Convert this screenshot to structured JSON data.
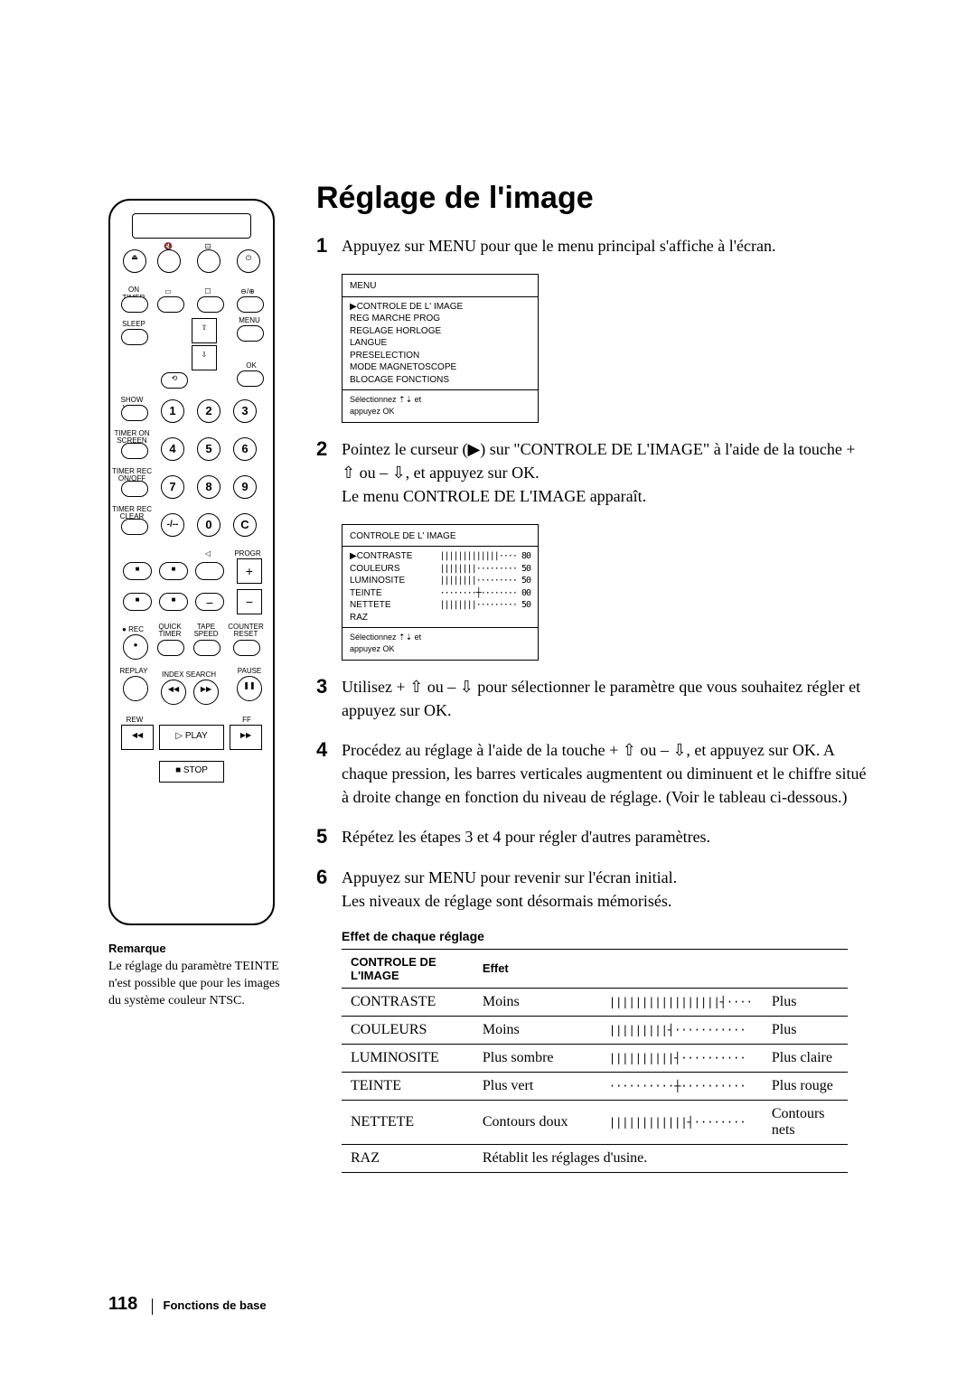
{
  "title": "Réglage de l'image",
  "steps": [
    {
      "n": "1",
      "text": "Appuyez sur MENU pour que le menu principal s'affiche à l'écran."
    },
    {
      "n": "2",
      "text": "Pointez le curseur (▶) sur \"CONTROLE DE L'IMAGE\" à l'aide de la touche + ⇧ ou – ⇩, et appuyez sur OK.\nLe menu CONTROLE DE L'IMAGE apparaît."
    },
    {
      "n": "3",
      "text": "Utilisez + ⇧ ou – ⇩ pour sélectionner le paramètre que vous souhaitez régler et appuyez sur OK."
    },
    {
      "n": "4",
      "text": "Procédez au réglage à l'aide de la touche + ⇧ ou – ⇩, et appuyez sur OK. A chaque pression, les barres verticales augmentent ou diminuent et le chiffre situé à droite change en fonction du niveau de réglage. (Voir le tableau ci-dessous.)"
    },
    {
      "n": "5",
      "text": "Répétez les étapes 3 et 4 pour régler d'autres paramètres."
    },
    {
      "n": "6",
      "text": "Appuyez sur MENU pour revenir sur l'écran initial.\nLes niveaux de réglage sont désormais mémorisés."
    }
  ],
  "osd1": {
    "header": "MENU",
    "items": [
      "▶CONTROLE DE L' IMAGE",
      "  REG MARCHE PROG",
      "  REGLAGE HORLOGE",
      "  LANGUE",
      "  PRESELECTION",
      "  MODE MAGNETOSCOPE",
      "  BLOCAGE FONCTIONS"
    ],
    "footer": "Sélectionnez ⇡⇣  et\nappuyez OK"
  },
  "osd2": {
    "header": "CONTROLE DE L' IMAGE",
    "rows": [
      {
        "label": "▶CONTRASTE",
        "bar": "|||||||||||||····",
        "val": "80"
      },
      {
        "label": "  COULEURS",
        "bar": "||||||||·········",
        "val": "50"
      },
      {
        "label": "  LUMINOSITE",
        "bar": "||||||||·········",
        "val": "50"
      },
      {
        "label": "  TEINTE",
        "bar": "········┼········",
        "val": "00"
      },
      {
        "label": "  NETTETE",
        "bar": "||||||||·········",
        "val": "50"
      },
      {
        "label": "  RAZ",
        "bar": "",
        "val": ""
      }
    ],
    "footer": "Sélectionnez ⇡⇣  et\nappuyez OK"
  },
  "note": {
    "heading": "Remarque",
    "text": "Le réglage du paramètre TEINTE n'est possible que pour les images du système couleur NTSC."
  },
  "table": {
    "title": "Effet de chaque réglage",
    "headers": [
      "CONTROLE DE L'IMAGE",
      "Effet"
    ],
    "rows": [
      {
        "name": "CONTRASTE",
        "left": "Moins",
        "bar": "|||||||||||||||||┤····",
        "right": "Plus"
      },
      {
        "name": "COULEURS",
        "left": "Moins",
        "bar": "|||||||||┤···········",
        "right": "Plus"
      },
      {
        "name": "LUMINOSITE",
        "left": "Plus sombre",
        "bar": "||||||||||┤··········",
        "right": "Plus claire"
      },
      {
        "name": "TEINTE",
        "left": "Plus vert",
        "bar": "··········┼··········",
        "right": "Plus rouge"
      },
      {
        "name": "NETTETE",
        "left": "Contours doux",
        "bar": "||||||||||||┤········",
        "right": "Contours nets"
      },
      {
        "name": "RAZ",
        "left": "Rétablit les réglages d'usine.",
        "bar": "",
        "right": ""
      }
    ]
  },
  "footer": {
    "page": "118",
    "section": "Fonctions de base"
  },
  "remote": {
    "top_row": [
      "eject",
      "mute",
      "display",
      "power"
    ],
    "row2_labels": [
      "ON TIMER",
      "",
      "",
      "⊖/⊕"
    ],
    "row3_left": "SLEEP",
    "menu_label": "MENU",
    "ok_label": "OK",
    "showview": "SHOW VIEW",
    "timer_onscreen": "TIMER ON SCREEN",
    "timer_rec_onoff": "TIMER REC ON/OFF",
    "timer_rec_clear": "TIMER REC CLEAR",
    "numbers": [
      "1",
      "2",
      "3",
      "4",
      "5",
      "6",
      "7",
      "8",
      "9",
      "-/--",
      "0",
      "C"
    ],
    "progr": "PROGR",
    "rec": "REC",
    "quick_timer": "QUICK TIMER",
    "tape_speed": "TAPE SPEED",
    "counter_reset": "COUNTER RESET",
    "replay": "REPLAY",
    "index_search": "INDEX SEARCH",
    "pause": "PAUSE",
    "rew": "REW",
    "play": "PLAY",
    "ff": "FF",
    "stop": "STOP"
  },
  "colors": {
    "text": "#000000",
    "background": "#ffffff",
    "border": "#000000"
  }
}
